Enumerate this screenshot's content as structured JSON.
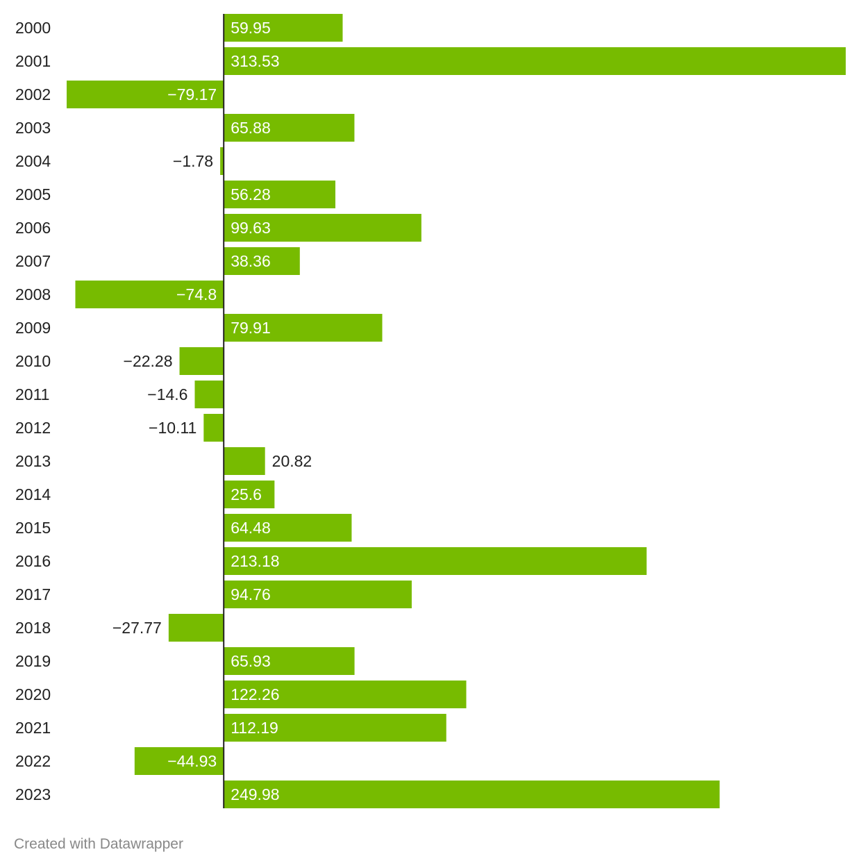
{
  "chart_data": {
    "type": "bar",
    "orientation": "horizontal",
    "categories": [
      "2000",
      "2001",
      "2002",
      "2003",
      "2004",
      "2005",
      "2006",
      "2007",
      "2008",
      "2009",
      "2010",
      "2011",
      "2012",
      "2013",
      "2014",
      "2015",
      "2016",
      "2017",
      "2018",
      "2019",
      "2020",
      "2021",
      "2022",
      "2023"
    ],
    "values": [
      59.95,
      313.53,
      -79.17,
      65.88,
      -1.78,
      56.28,
      99.63,
      38.36,
      -74.8,
      79.91,
      -22.28,
      -14.6,
      -10.11,
      20.82,
      25.6,
      64.48,
      213.18,
      94.76,
      -27.77,
      65.93,
      122.26,
      112.19,
      -44.93,
      249.98
    ],
    "labels": [
      "59.95",
      "313.53",
      "−79.17",
      "65.88",
      "−1.78",
      "56.28",
      "99.63",
      "38.36",
      "−74.8",
      "79.91",
      "−22.28",
      "−14.6",
      "−10.11",
      "20.82",
      "25.6",
      "64.48",
      "213.18",
      "94.76",
      "−27.77",
      "65.93",
      "122.26",
      "112.19",
      "−44.93",
      "249.98"
    ],
    "xlim": [
      -79.17,
      313.53
    ],
    "bar_color": "#77bb00",
    "grid": false,
    "title": "",
    "xlabel": "",
    "ylabel": ""
  },
  "footer": {
    "credit": "Created with Datawrapper"
  }
}
